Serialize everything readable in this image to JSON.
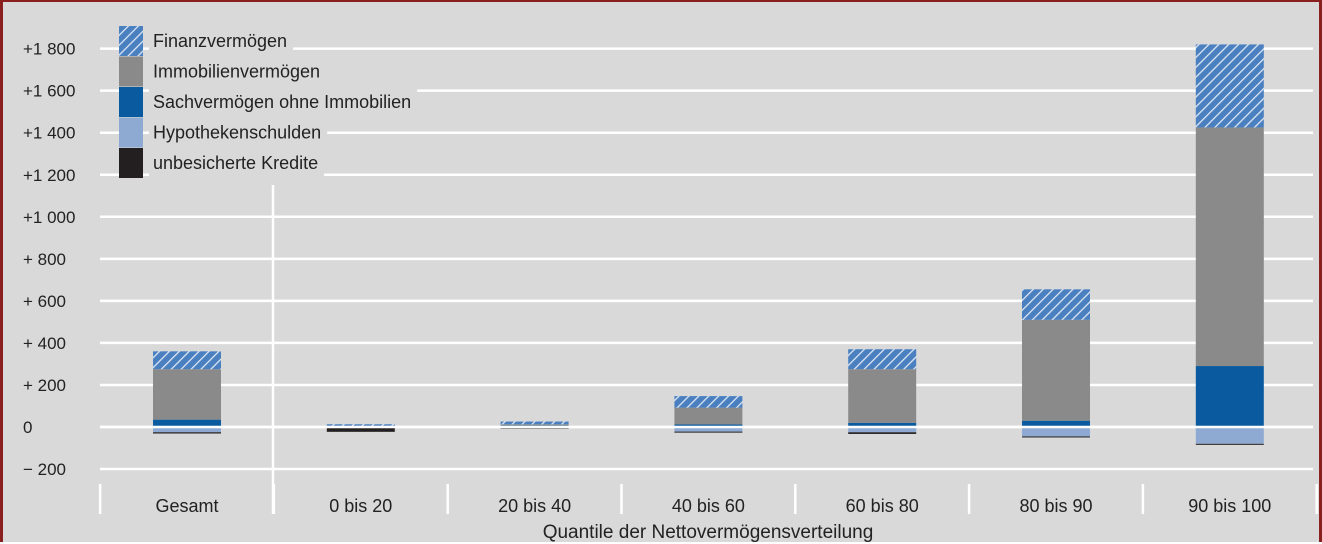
{
  "chart_data": {
    "type": "bar",
    "stacked": true,
    "xlabel": "Quantile der Nettovermögensverteilung",
    "ylabel": "",
    "ylim": [
      -200,
      1900
    ],
    "yticks": [
      1800,
      1600,
      1400,
      1200,
      1000,
      800,
      600,
      400,
      200,
      0,
      -200
    ],
    "ytick_labels": [
      "+1 800",
      "+1 600",
      "+1 400",
      "+1 200",
      "+1 000",
      "+ 800",
      "+ 600",
      "+ 400",
      "+ 200",
      "0",
      "− 200"
    ],
    "categories": [
      "Gesamt",
      "0 bis 20",
      "20 bis 40",
      "40 bis 60",
      "60 bis 80",
      "80 bis 90",
      "90 bis 100"
    ],
    "grid": true,
    "legend_position": "top-left",
    "series": [
      {
        "name": "Sachvermögen ohne Immobilien",
        "color": "#0a5aa0",
        "pattern": "solid",
        "values": [
          35,
          3,
          8,
          12,
          20,
          30,
          290
        ]
      },
      {
        "name": "Immobilienvermögen",
        "color": "#8a8a8a",
        "pattern": "solid",
        "values": [
          240,
          2,
          5,
          80,
          255,
          480,
          1135
        ]
      },
      {
        "name": "Finanzvermögen",
        "color": "#4a7fc0",
        "pattern": "hatched",
        "values": [
          85,
          8,
          13,
          55,
          95,
          145,
          395
        ]
      },
      {
        "name": "Hypothekenschulden",
        "color": "#8eaad2",
        "pattern": "solid",
        "values": [
          -25,
          -5,
          -3,
          -22,
          -25,
          -45,
          -80
        ]
      },
      {
        "name": "unbesicherte Kredite",
        "color": "#231f20",
        "pattern": "solid",
        "values": [
          -6,
          -18,
          -2,
          -3,
          -8,
          -3,
          -2
        ]
      }
    ],
    "legend_order": [
      "Finanzvermögen",
      "Immobilienvermögen",
      "Sachvermögen ohne Immobilien",
      "Hypothekenschulden",
      "unbesicherte Kredite"
    ]
  }
}
